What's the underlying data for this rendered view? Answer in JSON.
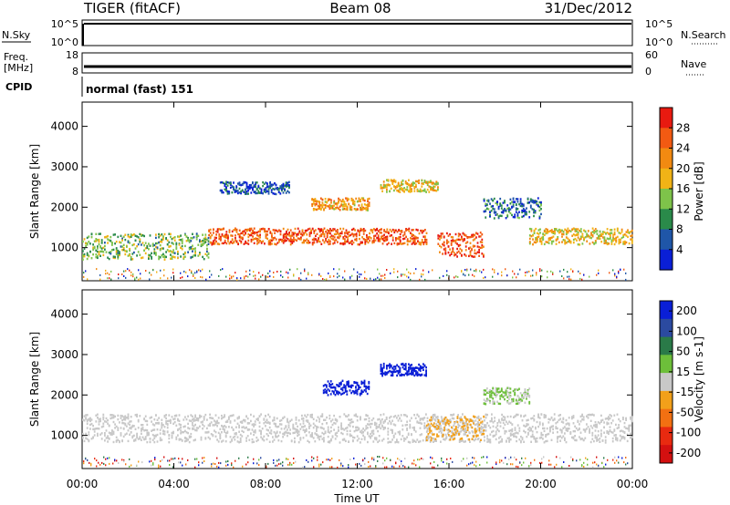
{
  "header": {
    "radar": "TIGER (fitACF)",
    "beam": "Beam 08",
    "date": "31/Dec/2012"
  },
  "nsky_panel": {
    "left_label": "N.Sky",
    "left_ticks": [
      "10^5",
      "10^0"
    ],
    "right_ticks": [
      "10^5",
      "10^0"
    ],
    "right_label": "N.Search",
    "right_legend_style": "dotted"
  },
  "freq_panel": {
    "left_label_lines": [
      "Freq.",
      "[MHz]"
    ],
    "left_ticks": [
      "18",
      "8"
    ],
    "right_ticks": [
      "60",
      "0"
    ],
    "right_label": "Nave",
    "right_legend_style": "dotted"
  },
  "cpid_panel": {
    "label": "CPID",
    "program": "normal (fast) 151"
  },
  "x_axis": {
    "title": "Time UT",
    "ticks": [
      "00:00",
      "04:00",
      "08:00",
      "12:00",
      "16:00",
      "20:00",
      "00:00"
    ],
    "range_hours": [
      0,
      24
    ]
  },
  "chart_data": [
    {
      "type": "heatmap",
      "parameter": "Power",
      "ylabel": "Slant Range [km]",
      "yticks": [
        1000,
        2000,
        3000,
        4000
      ],
      "ylim": [
        180,
        4600
      ],
      "colorbar": {
        "label": "Power [dB]",
        "ticks": [
          4,
          8,
          12,
          16,
          20,
          24,
          28
        ],
        "range": [
          0,
          32
        ]
      },
      "features": [
        {
          "t_start": 0.0,
          "t_end": 5.5,
          "range_center_km": 1050,
          "half_width_km": 320,
          "value_db": 13
        },
        {
          "t_start": 5.5,
          "t_end": 15.0,
          "range_center_km": 1300,
          "half_width_km": 200,
          "value_db": 26
        },
        {
          "t_start": 10.0,
          "t_end": 12.5,
          "range_center_km": 2100,
          "half_width_km": 150,
          "value_db": 20
        },
        {
          "t_start": 13.0,
          "t_end": 15.5,
          "range_center_km": 2550,
          "half_width_km": 150,
          "value_db": 18
        },
        {
          "t_start": 15.5,
          "t_end": 17.5,
          "range_center_km": 1100,
          "half_width_km": 300,
          "value_db": 27
        },
        {
          "t_start": 17.5,
          "t_end": 20.0,
          "range_center_km": 2000,
          "half_width_km": 250,
          "value_db": 7
        },
        {
          "t_start": 19.5,
          "t_end": 24.0,
          "range_center_km": 1300,
          "half_width_km": 200,
          "value_db": 18
        },
        {
          "t_start": 6.0,
          "t_end": 9.0,
          "range_center_km": 2500,
          "half_width_km": 150,
          "value_db": 5
        }
      ]
    },
    {
      "type": "heatmap",
      "parameter": "Velocity",
      "ylabel": "Slant Range [km]",
      "yticks": [
        1000,
        2000,
        3000,
        4000
      ],
      "ylim": [
        180,
        4600
      ],
      "colorbar": {
        "label": "Velocity [m s-1]",
        "ticks": [
          200,
          100,
          50,
          15,
          -15,
          -50,
          -100,
          -200
        ],
        "range": [
          -250,
          250
        ]
      },
      "features": [
        {
          "t_start": 0.0,
          "t_end": 24.0,
          "range_center_km": 1200,
          "half_width_km": 350,
          "value_ms": 0
        },
        {
          "t_start": 10.5,
          "t_end": 12.5,
          "range_center_km": 2200,
          "half_width_km": 180,
          "value_ms": 220
        },
        {
          "t_start": 13.0,
          "t_end": 15.0,
          "range_center_km": 2650,
          "half_width_km": 150,
          "value_ms": 230
        },
        {
          "t_start": 15.0,
          "t_end": 17.5,
          "range_center_km": 1200,
          "half_width_km": 300,
          "value_ms": -40
        },
        {
          "t_start": 17.5,
          "t_end": 19.5,
          "range_center_km": 2000,
          "half_width_km": 200,
          "value_ms": 30
        }
      ]
    }
  ],
  "colors": {
    "power_scale": [
      "#0a1fd6",
      "#1f56a8",
      "#2a8a4a",
      "#7ec34a",
      "#f1b316",
      "#f28a11",
      "#f25a12",
      "#e81a10"
    ],
    "velocity_scale": [
      "#0a1fd6",
      "#2b4aa0",
      "#2a7a48",
      "#6dbf3a",
      "#c8c8c8",
      "#f2a01a",
      "#f27012",
      "#e82a10",
      "#d41010"
    ]
  }
}
